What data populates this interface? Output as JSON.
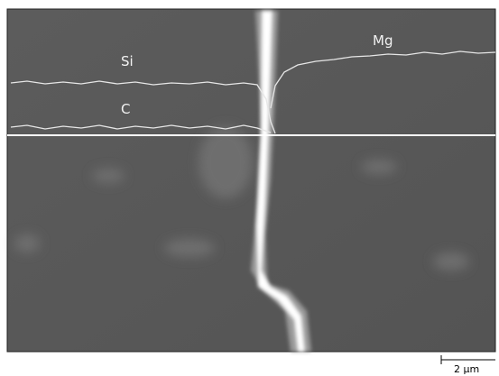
{
  "image": {
    "labels": {
      "si": "Si",
      "c": "C",
      "mg": "Mg"
    }
  },
  "scale_bar": {
    "label": "2 μm"
  }
}
